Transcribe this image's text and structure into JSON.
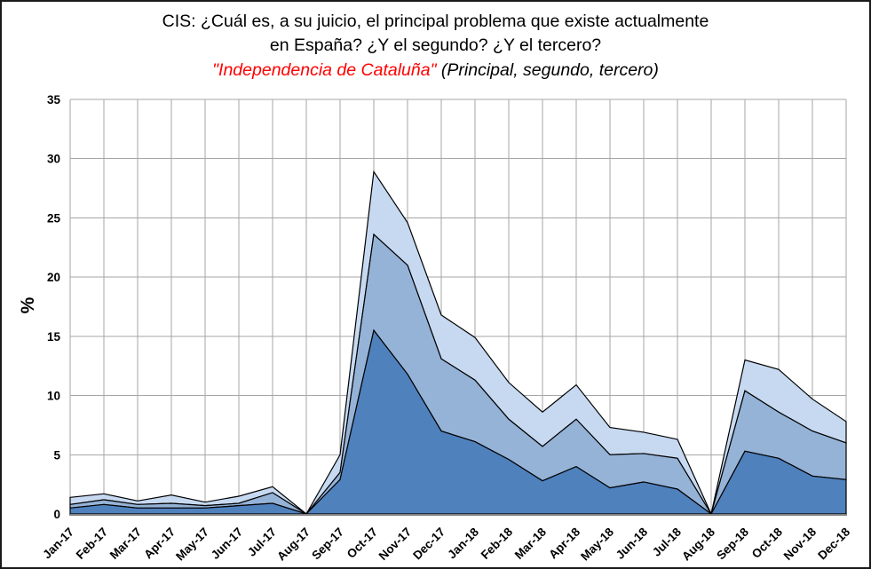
{
  "title": {
    "line1": "CIS: ¿Cuál es, a su juicio, el principal problema que existe actualmente",
    "line2": "en España? ¿Y el segundo? ¿Y el tercero?",
    "subtitle_highlight": "\"Independencia de Cataluña\" ",
    "subtitle_note": "(Principal, segundo, tercero)"
  },
  "colors": {
    "subtitle_highlight": "#ff0000",
    "gridline": "#a6a6a6",
    "axis_line": "#808080",
    "series_outline": "#000000",
    "principal": "#4f81bd",
    "segundo": "#95b3d7",
    "tercero": "#c6d9f1"
  },
  "chart_data": {
    "type": "area",
    "stacked": true,
    "title": "CIS: ¿Cuál es, a su juicio, el principal problema que existe actualmente en España? ¿Y el segundo? ¿Y el tercero? — \"Independencia de Cataluña\" (Principal, segundo, tercero)",
    "xlabel": "",
    "ylabel": "%",
    "ylim": [
      0,
      35
    ],
    "yticks": [
      0,
      5,
      10,
      15,
      20,
      25,
      30,
      35
    ],
    "grid": true,
    "legend": "none (series identified in subtitle)",
    "categories": [
      "Jan-17",
      "Feb-17",
      "Mar-17",
      "Apr-17",
      "May-17",
      "Jun-17",
      "Jul-17",
      "Aug-17",
      "Sep-17",
      "Oct-17",
      "Nov-17",
      "Dec-17",
      "Jan-18",
      "Feb-18",
      "Mar-18",
      "Apr-18",
      "May-18",
      "Jun-18",
      "Jul-18",
      "Aug-18",
      "Sep-18",
      "Oct-18",
      "Nov-18",
      "Dec-18"
    ],
    "series": [
      {
        "name": "Principal",
        "color": "#4f81bd",
        "values": [
          0.5,
          0.8,
          0.5,
          0.5,
          0.5,
          0.7,
          0.9,
          0,
          2.9,
          15.5,
          11.8,
          7.0,
          6.1,
          4.6,
          2.8,
          4.0,
          2.2,
          2.7,
          2.1,
          0,
          5.3,
          4.7,
          3.2,
          2.9
        ]
      },
      {
        "name": "Segundo",
        "color": "#95b3d7",
        "values": [
          0.3,
          0.4,
          0.3,
          0.4,
          0.2,
          0.2,
          0.9,
          0,
          0.6,
          8.1,
          9.2,
          6.1,
          5.2,
          3.4,
          2.9,
          4.0,
          2.8,
          2.4,
          2.6,
          0,
          5.1,
          3.9,
          3.8,
          3.1
        ]
      },
      {
        "name": "Tercero",
        "color": "#c6d9f1",
        "values": [
          0.6,
          0.5,
          0.3,
          0.7,
          0.3,
          0.6,
          0.5,
          0,
          1.5,
          5.3,
          3.6,
          3.7,
          3.6,
          3.1,
          2.9,
          2.9,
          2.3,
          1.8,
          1.6,
          0,
          2.6,
          3.6,
          2.7,
          1.8
        ]
      }
    ]
  }
}
